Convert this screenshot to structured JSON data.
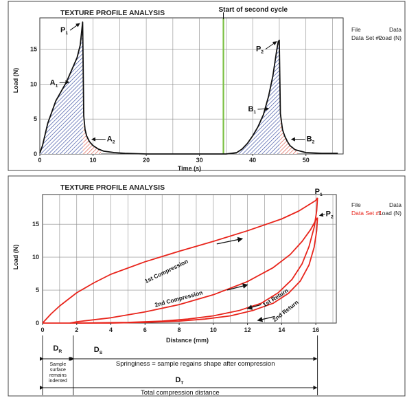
{
  "colors": {
    "curve_top": "#111111",
    "shade_blue": "#2a3f9a",
    "shade_red": "#d94b3c",
    "marker_green": "#7bc043",
    "curve_bottom": "#e8241b",
    "grid": "#8a8a8a"
  },
  "chart_data": [
    {
      "type": "line",
      "title": "TEXTURE PROFILE ANALYSIS",
      "xlabel": "Time (s)",
      "ylabel": "Load (N)",
      "xlim": [
        0,
        57
      ],
      "ylim": [
        0,
        19.5
      ],
      "xticks": [
        0,
        10,
        20,
        30,
        40,
        50
      ],
      "yticks": [
        0,
        5,
        10,
        15
      ],
      "grid": true,
      "legend": {
        "position": "right",
        "header": [
          "File",
          "Data"
        ],
        "entry": [
          "Data Set #2",
          "Load (N)"
        ]
      },
      "series": [
        {
          "x": [
            0,
            0.5,
            1.5,
            3,
            5,
            7,
            7.6,
            8.05,
            8.25,
            8.5,
            8.8,
            9.3,
            10,
            11,
            12,
            14,
            16,
            20,
            25,
            30,
            33,
            35,
            37,
            38,
            39,
            40,
            41,
            42,
            43,
            43.8,
            44.5,
            44.8,
            45.0,
            45.2,
            45.6,
            46,
            46.5,
            47,
            48,
            50,
            53,
            56
          ],
          "y": [
            0.1,
            1.2,
            4.4,
            7.6,
            10.3,
            13.8,
            15.6,
            18.9,
            5.5,
            3.5,
            2.6,
            1.8,
            1.2,
            0.7,
            0.4,
            0.2,
            0.1,
            0,
            0,
            0,
            0,
            0,
            0.2,
            0.7,
            1.5,
            2.6,
            3.9,
            5.6,
            8.3,
            11.2,
            14.8,
            16.1,
            16.3,
            5.8,
            3.5,
            2.6,
            1.8,
            1.2,
            0.6,
            0.2,
            0.1,
            0.1
          ]
        }
      ],
      "shaded_regions": [
        {
          "label": "A1",
          "x_range": [
            0,
            8.1
          ],
          "color": "shade_blue"
        },
        {
          "label": "A2",
          "x_range": [
            8.1,
            11.5
          ],
          "color": "shade_red"
        },
        {
          "label": "B1",
          "x_range": [
            37,
            45.1
          ],
          "color": "shade_blue"
        },
        {
          "label": "B2",
          "x_range": [
            45.1,
            48.5
          ],
          "color": "shade_red"
        }
      ],
      "marker": {
        "x": 34.5,
        "label": "Start of second cycle"
      },
      "annotations": [
        {
          "text": "P",
          "sub": "1",
          "x": 8.0,
          "y": 18.9
        },
        {
          "text": "A",
          "sub": "1",
          "x": 5.5,
          "y": 10.3
        },
        {
          "text": "A",
          "sub": "2",
          "x": 9.0,
          "y": 2.1
        },
        {
          "text": "P",
          "sub": "2",
          "x": 45.0,
          "y": 16.3
        },
        {
          "text": "B",
          "sub": "1",
          "x": 43.0,
          "y": 6.5
        },
        {
          "text": "B",
          "sub": "2",
          "x": 46.5,
          "y": 2.1
        }
      ]
    },
    {
      "type": "line",
      "title": "TEXTURE PROFILE ANALYSIS",
      "xlabel": "Distance (mm)",
      "ylabel": "Load (N)",
      "xlim": [
        0,
        17.2
      ],
      "ylim": [
        0,
        19.5
      ],
      "xticks": [
        0,
        2,
        4,
        6,
        8,
        10,
        12,
        14,
        16
      ],
      "yticks": [
        0,
        5,
        10,
        15
      ],
      "grid": true,
      "legend": {
        "position": "right",
        "header": [
          "File",
          "Data"
        ],
        "entry": [
          "Data Set #1",
          "Load (N)"
        ]
      },
      "series": [
        {
          "name": "1st Compression",
          "x": [
            0,
            0.5,
            1,
            2,
            3,
            4,
            6,
            8,
            10,
            12,
            14,
            15,
            16,
            16.1
          ],
          "y": [
            0,
            1.4,
            2.6,
            4.6,
            6.1,
            7.4,
            9.3,
            10.9,
            12.4,
            14.0,
            15.8,
            17.0,
            18.6,
            19.0
          ]
        },
        {
          "name": "1st Return",
          "x": [
            16.1,
            16.05,
            15.9,
            15.6,
            15.2,
            14.6,
            13.8,
            12.8,
            11.5,
            10,
            8.5,
            7,
            5,
            2,
            0
          ],
          "y": [
            19.0,
            17.0,
            14.5,
            11.6,
            9.0,
            6.6,
            4.6,
            3.0,
            1.9,
            1.1,
            0.6,
            0.3,
            0.1,
            0,
            0
          ]
        },
        {
          "name": "2nd Compression",
          "x": [
            1.6,
            2,
            4,
            6,
            8,
            10,
            12,
            13.5,
            14.5,
            15.2,
            15.7,
            16.0,
            16.1
          ],
          "y": [
            0,
            0.2,
            0.8,
            1.7,
            2.8,
            4.3,
            6.3,
            8.4,
            10.4,
            12.4,
            14.2,
            15.6,
            16.0
          ]
        },
        {
          "name": "2nd Return",
          "x": [
            16.1,
            16.05,
            15.9,
            15.6,
            15.1,
            14.4,
            13.5,
            12.3,
            11,
            9.5,
            8,
            6,
            4,
            2
          ],
          "y": [
            16.0,
            14.0,
            11.5,
            8.8,
            6.4,
            4.5,
            3.0,
            1.9,
            1.1,
            0.6,
            0.3,
            0.1,
            0,
            0
          ]
        }
      ],
      "point_labels": [
        {
          "text": "P",
          "sub": "1",
          "x": 16.1,
          "y": 19.0
        },
        {
          "text": "P",
          "sub": "2",
          "x": 16.1,
          "y": 16.0
        }
      ],
      "curve_labels": [
        {
          "text": "1st Compression",
          "series": "1st Compression"
        },
        {
          "text": "2nd Compression",
          "series": "2nd Compression"
        },
        {
          "text": "1st Return",
          "series": "1st Return"
        },
        {
          "text": "2nd Return",
          "series": "2nd Return"
        }
      ],
      "dimensions": [
        {
          "text": "D",
          "sub": "R",
          "from": 0,
          "to": 1.8,
          "caption": [
            "Sample",
            "surface",
            "remains",
            "indented"
          ]
        },
        {
          "text": "D",
          "sub": "S",
          "from": 1.8,
          "to": 16.1,
          "caption": [
            "Springiness = sample regains shape after compression"
          ]
        },
        {
          "text": "D",
          "sub": "T",
          "from": 0,
          "to": 16.1,
          "caption": [
            "Total compression distance"
          ]
        }
      ]
    }
  ]
}
